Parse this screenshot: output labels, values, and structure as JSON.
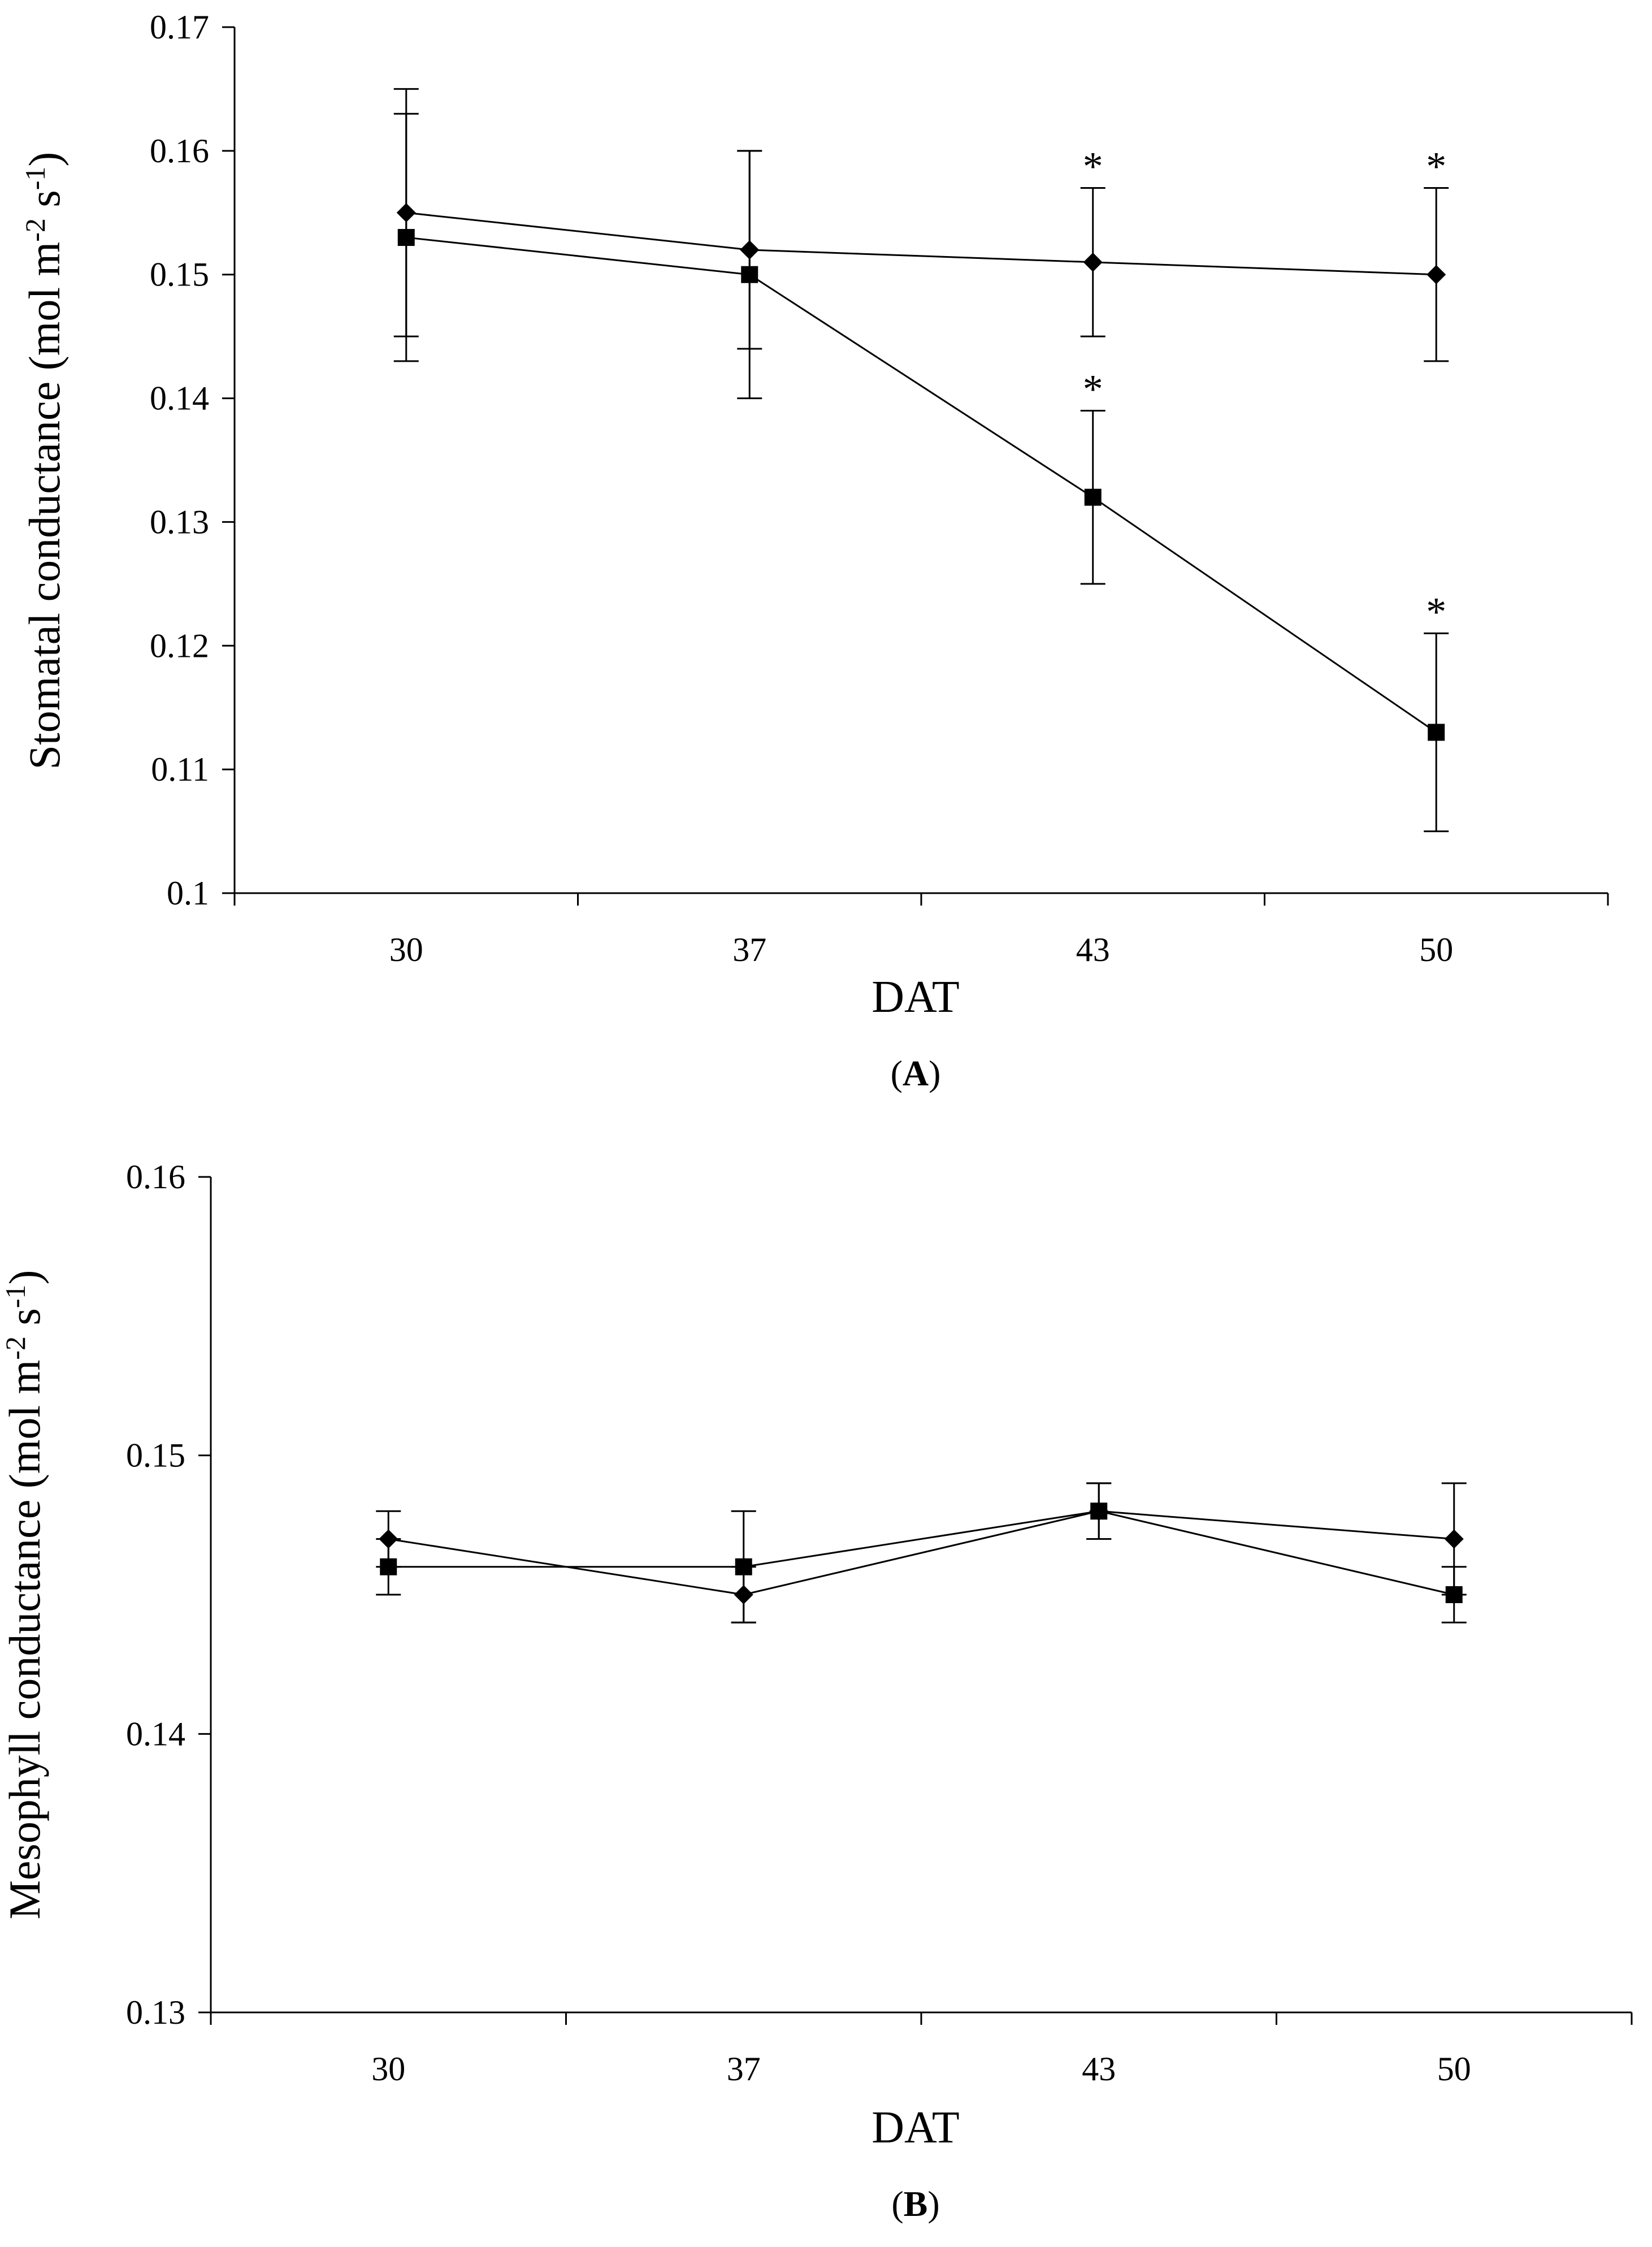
{
  "chart_data": [
    {
      "type": "line",
      "panel_label": "A",
      "title": "",
      "xlabel": "DAT",
      "ylabel": "Stomatal conductance (mol m-2 s-1)",
      "ylabel_parts": {
        "base": "Stomatal conductance (mol m",
        "sup1": "-2",
        "mid": " s",
        "sup2": "-1",
        "end": ")"
      },
      "categories": [
        "30",
        "37",
        "43",
        "50"
      ],
      "ylim": [
        0.1,
        0.17
      ],
      "yticks": [
        "0.1",
        "0.11",
        "0.12",
        "0.13",
        "0.14",
        "0.15",
        "0.16",
        "0.17"
      ],
      "grid": false,
      "series": [
        {
          "name": "diamond series",
          "marker": "diamond",
          "values": [
            0.155,
            0.152,
            0.151,
            0.15
          ],
          "errors": [
            0.01,
            0.008,
            0.006,
            0.007
          ],
          "significant": [
            false,
            false,
            true,
            true
          ]
        },
        {
          "name": "square series",
          "marker": "square",
          "values": [
            0.153,
            0.15,
            0.132,
            0.113
          ],
          "errors": [
            0.01,
            0.01,
            0.007,
            0.008
          ],
          "significant": [
            false,
            false,
            true,
            true
          ]
        }
      ],
      "significance_mark": "*"
    },
    {
      "type": "line",
      "panel_label": "B",
      "title": "",
      "xlabel": "DAT",
      "ylabel": "Mesophyll conductance (mol m-2 s-1)",
      "ylabel_parts": {
        "base": "Mesophyll conductance (mol m",
        "sup1": "-2",
        "mid": " s",
        "sup2": "-1",
        "end": ")"
      },
      "categories": [
        "30",
        "37",
        "43",
        "50"
      ],
      "ylim": [
        0.13,
        0.16
      ],
      "yticks": [
        "0.13",
        "0.14",
        "0.15",
        "0.16"
      ],
      "grid": false,
      "series": [
        {
          "name": "diamond series",
          "marker": "diamond",
          "values": [
            0.147,
            0.145,
            0.148,
            0.147
          ],
          "errors": [
            0.001,
            0.001,
            0.001,
            0.002
          ],
          "significant": [
            false,
            false,
            false,
            false
          ]
        },
        {
          "name": "square series",
          "marker": "square",
          "values": [
            0.146,
            0.146,
            0.148,
            0.145
          ],
          "errors": [
            0.001,
            0.002,
            0.001,
            0.001
          ],
          "significant": [
            false,
            false,
            false,
            false
          ]
        }
      ],
      "significance_mark": "*"
    }
  ]
}
